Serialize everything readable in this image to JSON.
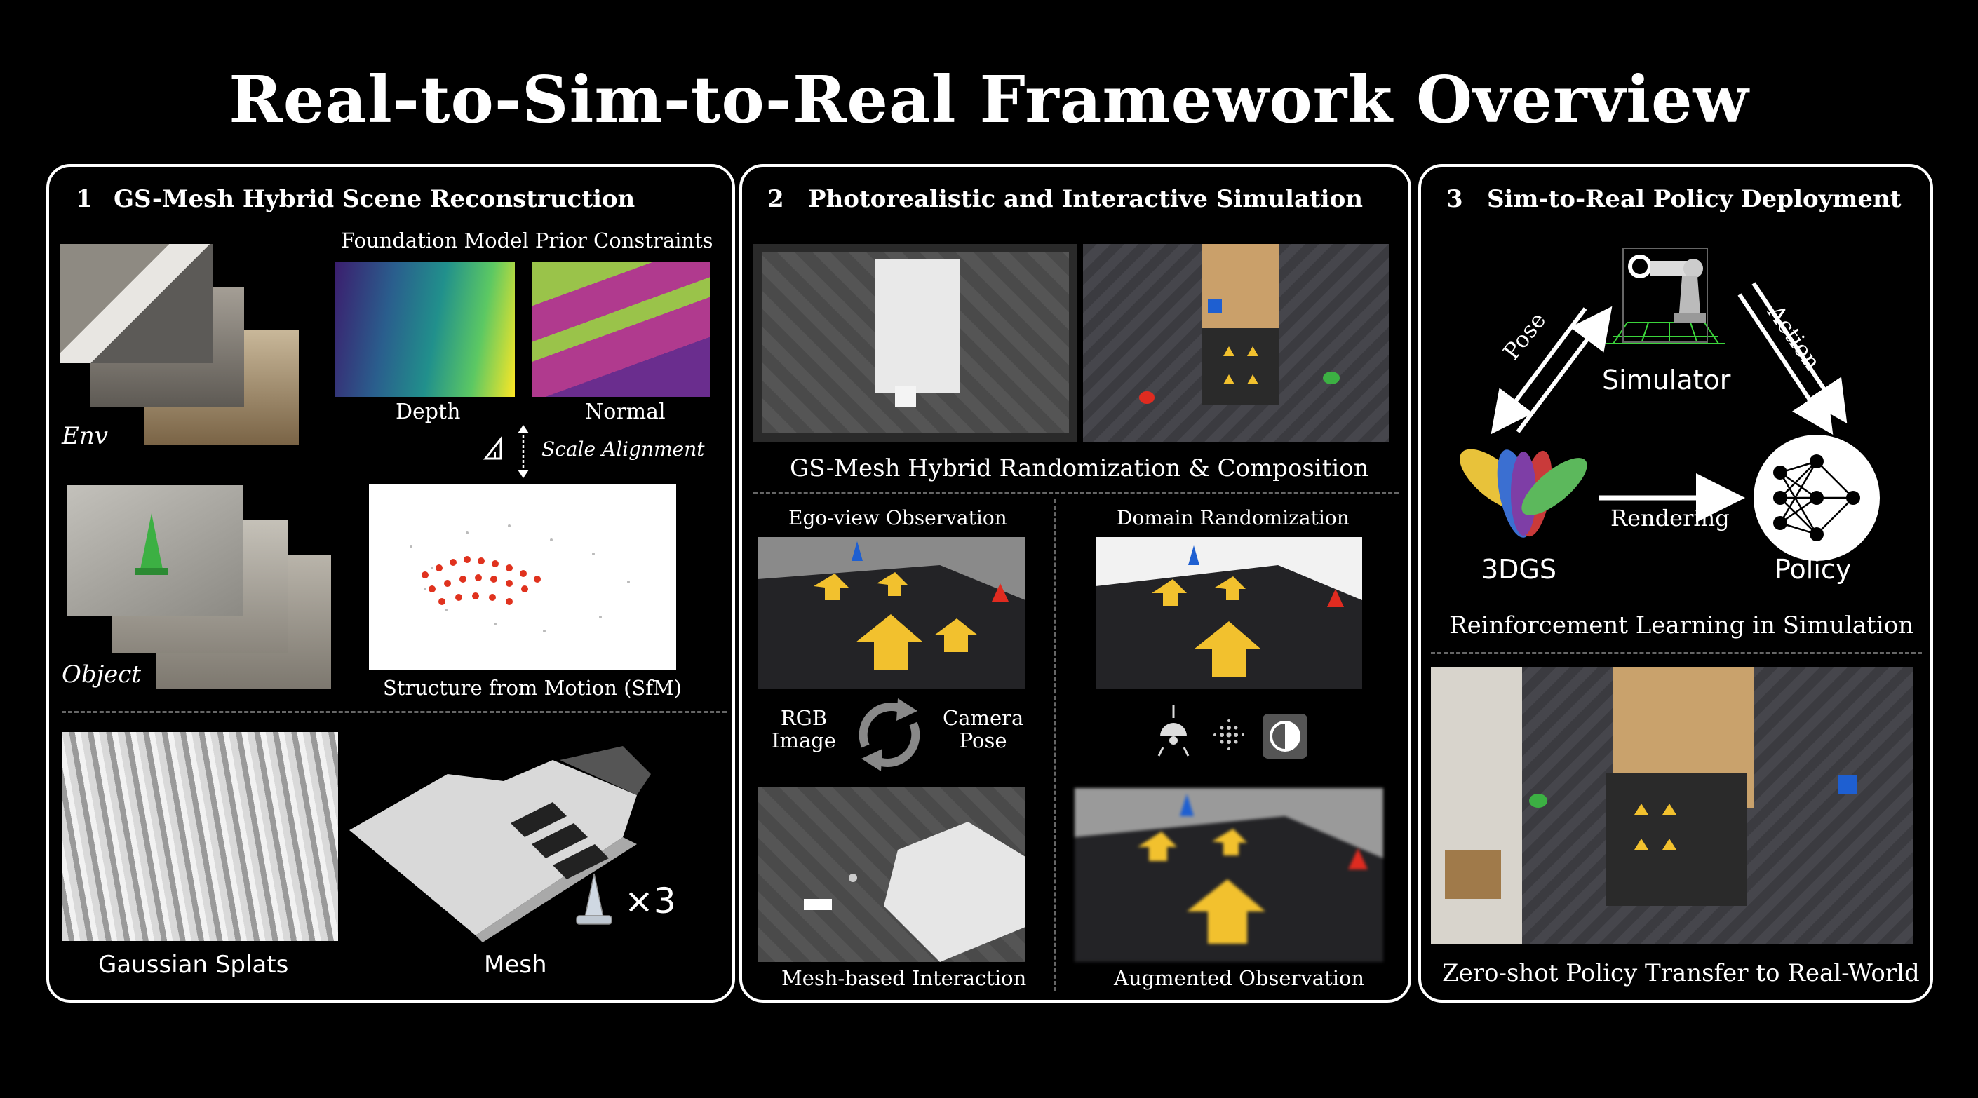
{
  "title": "Real-to-Sim-to-Real Framework Overview",
  "panel1": {
    "number": "1",
    "title": "GS-Mesh Hybrid Scene Reconstruction",
    "prior_constraints": "Foundation Model Prior Constraints",
    "depth": "Depth",
    "normal": "Normal",
    "env": "Env",
    "object": "Object",
    "scale_alignment": "Scale Alignment",
    "sfm": "Structure from Motion (SfM)",
    "gaussian_splats": "Gaussian Splats",
    "mesh": "Mesh",
    "times3": "×3"
  },
  "panel2": {
    "number": "2",
    "title": "Photorealistic and Interactive Simulation",
    "hybrid": "GS-Mesh Hybrid Randomization & Composition",
    "ego_view": "Ego-view Observation",
    "domain_rand": "Domain Randomization",
    "rgb_image": "RGB\nImage",
    "camera_pose": "Camera\nPose",
    "mesh_interaction": "Mesh-based Interaction",
    "augmented": "Augmented Observation"
  },
  "panel3": {
    "number": "3",
    "title": "Sim-to-Real Policy Deployment",
    "simulator": "Simulator",
    "pose": "Pose",
    "action": "Action",
    "rendering": "Rendering",
    "gs3d": "3DGS",
    "policy": "Policy",
    "rl": "Reinforcement Learning in Simulation",
    "zero_shot": "Zero-shot Policy Transfer to Real-World"
  },
  "colors": {
    "background": "#000000",
    "border": "#ffffff",
    "cone_green": "#3cb043",
    "cone_red": "#e02b20",
    "cone_blue": "#1e5fd1",
    "arrow_yellow": "#f2c12e"
  },
  "icons": [
    "robot-arm-icon",
    "neural-network-icon",
    "gaussian-splat-icon",
    "lamp-icon",
    "noise-icon",
    "contrast-icon",
    "refresh-cycle-icon"
  ]
}
